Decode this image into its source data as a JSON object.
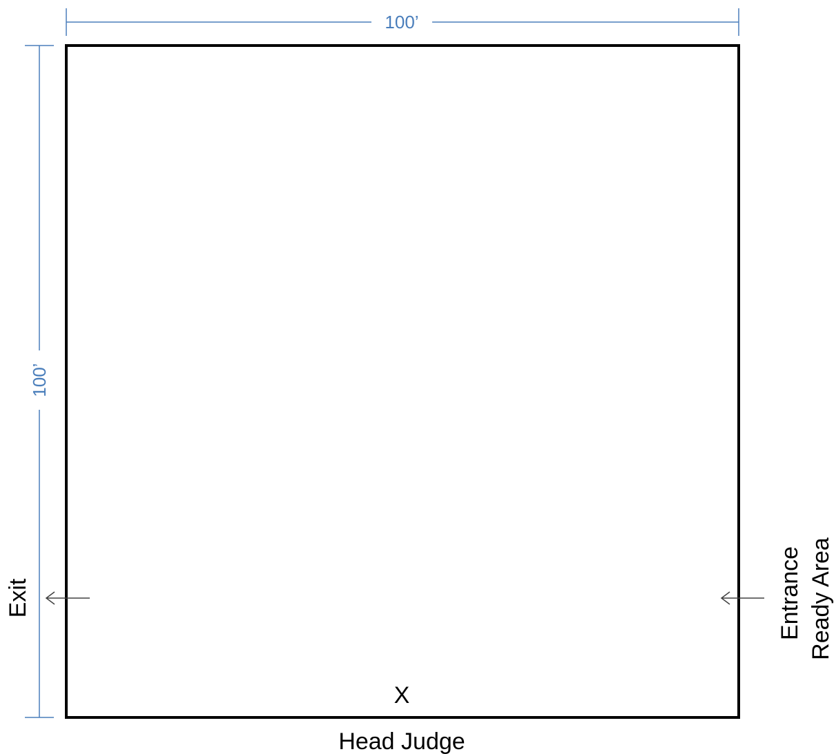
{
  "colors": {
    "dimension": "#4a7ebb",
    "outline": "#000000",
    "arrow": "#404040"
  },
  "dimensions": {
    "width_label": "100’",
    "height_label": "100’"
  },
  "labels": {
    "exit": "Exit",
    "entrance": "Entrance",
    "ready_area": "Ready Area",
    "judge_mark": "X",
    "head_judge": "Head Judge"
  },
  "icons": {
    "exit_arrow": "left-arrow-icon",
    "entrance_arrow": "left-arrow-icon"
  }
}
